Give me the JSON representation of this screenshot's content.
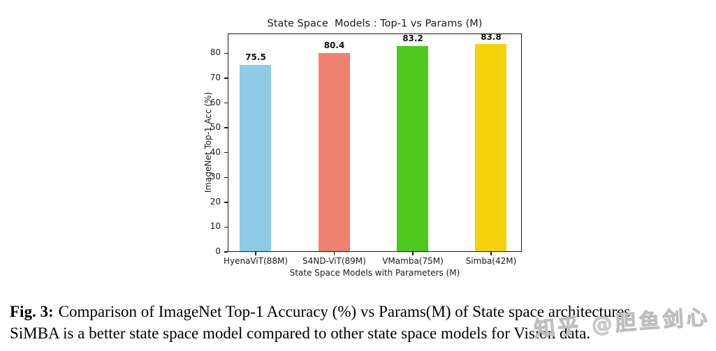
{
  "chart_data": {
    "type": "bar",
    "title": "State Space  Models : Top-1 vs Params (M)",
    "xlabel": "State Space Models with Parameters (M)",
    "ylabel": "ImageNet Top-1 Acc (%)",
    "categories": [
      "HyenaViT(88M)",
      "S4ND-ViT(89M)",
      "VMamba(75M)",
      "Simba(42M)"
    ],
    "values": [
      75.5,
      80.4,
      83.2,
      83.8
    ],
    "value_labels": [
      "75.5",
      "80.4",
      "83.2",
      "83.8"
    ],
    "bar_colors": [
      "#8FCAE7",
      "#F0806F",
      "#4FC81E",
      "#F5D20A"
    ],
    "yticks": [
      0,
      10,
      20,
      30,
      40,
      50,
      60,
      70,
      80
    ],
    "ylim": [
      0,
      88
    ],
    "grid": false,
    "legend": null
  },
  "caption": {
    "label": "Fig. 3:",
    "line1": "Comparison of ImageNet Top-1 Accuracy (%) vs Params(M) of State space architectures.",
    "line2": "SiMBA is a better state space model compared to other state space models for Vision data."
  },
  "watermark": "知乎 @胆鱼剑心"
}
